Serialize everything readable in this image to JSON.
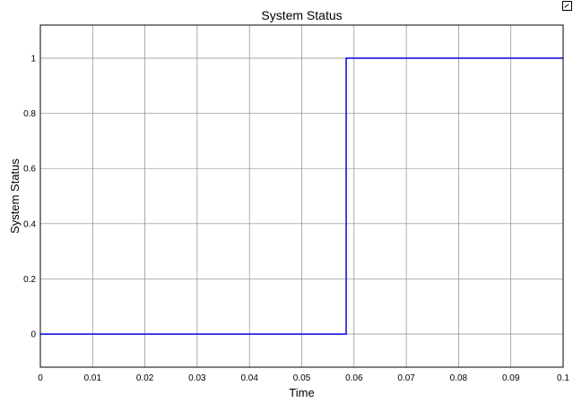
{
  "chart_data": {
    "type": "line",
    "title": "System Status",
    "xlabel": "Time",
    "ylabel": "System Status",
    "xlim": [
      0,
      0.1
    ],
    "ylim": [
      -0.12,
      1.12
    ],
    "xticks": [
      0,
      0.01,
      0.02,
      0.03,
      0.04,
      0.05,
      0.06,
      0.07,
      0.08,
      0.09,
      0.1
    ],
    "xtick_labels": [
      "0",
      "0.01",
      "0.02",
      "0.03",
      "0.04",
      "0.05",
      "0.06",
      "0.07",
      "0.08",
      "0.09",
      "0.1"
    ],
    "yticks": [
      0,
      0.2,
      0.4,
      0.6,
      0.8,
      1
    ],
    "ytick_labels": [
      "0",
      "0.2",
      "0.4",
      "0.6",
      "0.8",
      "1"
    ],
    "grid": true,
    "series": [
      {
        "color": "#1414e6",
        "x": [
          0,
          0.0585,
          0.0585,
          0.1
        ],
        "y": [
          0,
          0,
          1,
          1
        ]
      }
    ]
  },
  "toolbar": {
    "dock_icon": "dock-icon"
  }
}
